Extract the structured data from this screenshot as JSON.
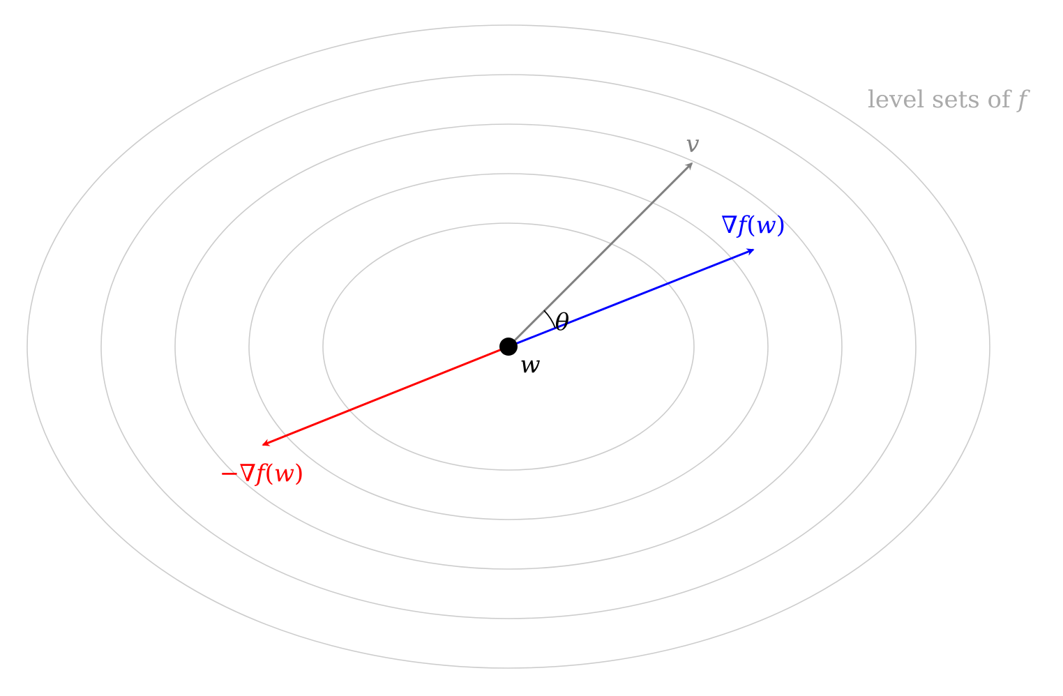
{
  "diagram": {
    "caption": {
      "text": "level sets of ",
      "symbol": "f"
    },
    "point": {
      "label": "w"
    },
    "angle": {
      "label": "θ"
    },
    "vectors": {
      "v": {
        "label": "v"
      },
      "gradient": {
        "nabla": "∇",
        "func": "f",
        "open": "(",
        "arg": "w",
        "close": ")"
      },
      "neg_gradient": {
        "minus": "−",
        "nabla": "∇",
        "func": "f",
        "open": "(",
        "arg": "w",
        "close": ")"
      }
    },
    "level_set_count": 5,
    "colors": {
      "level_sets": "#cccccc",
      "caption": "#aaaaaa",
      "v": "#808080",
      "gradient": "#0000ff",
      "neg_gradient": "#ff0000",
      "point": "#000000",
      "angle": "#000000"
    }
  }
}
